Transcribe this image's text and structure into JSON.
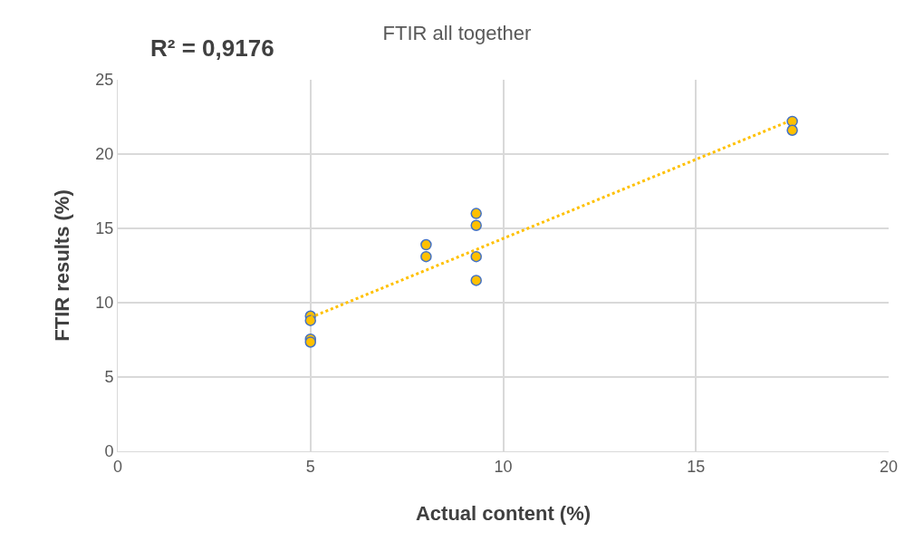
{
  "chart_data": {
    "type": "scatter",
    "title": "FTIR all together",
    "xlabel": "Actual content (%)",
    "ylabel": "FTIR results (%)",
    "annotations": [
      "R² = 0,9176"
    ],
    "series": [
      {
        "color": "#ffc000",
        "marker": "circle",
        "x": [
          5,
          5,
          5,
          5,
          8,
          8,
          9.3,
          9.3,
          9.3,
          9.3,
          17.5,
          17.5
        ],
        "values": [
          9.1,
          8.8,
          7.55,
          7.35,
          13.9,
          13.1,
          16.0,
          15.2,
          13.1,
          11.5,
          22.2,
          21.6
        ]
      },
      {
        "type": "line",
        "color": "#ffc000",
        "line_style": "dotted",
        "marker": "none",
        "x": [
          5,
          17.5
        ],
        "values": [
          9.0,
          22.3
        ]
      }
    ],
    "xlim": [
      0,
      20
    ],
    "xticks": [
      0,
      5,
      10,
      15,
      20
    ],
    "ylim": [
      0,
      25
    ],
    "yticks": [
      0,
      5,
      10,
      15,
      20,
      25
    ],
    "grid": true
  }
}
